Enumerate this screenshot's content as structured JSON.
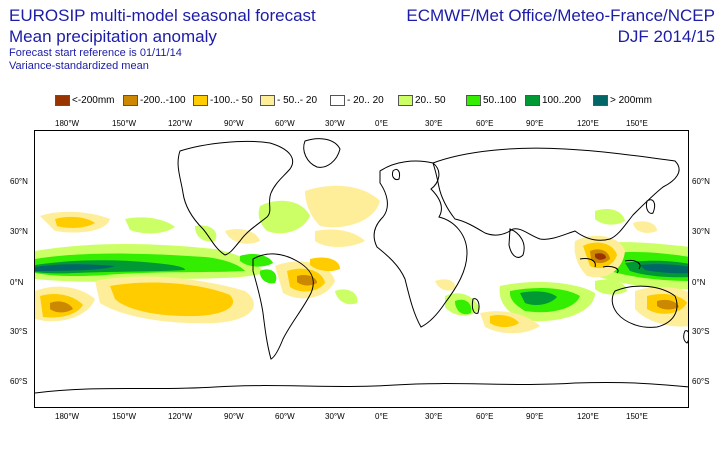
{
  "header": {
    "title_line1": "EUROSIP multi-model seasonal forecast",
    "title_line2": "Mean precipitation anomaly",
    "forecast_reference": "Forecast start reference is 01/11/14",
    "variance_note": "Variance-standardized mean",
    "centres": "ECMWF/Met Office/Meteo-France/NCEP",
    "season": "DJF 2014/15"
  },
  "legend": [
    {
      "label": "<-200mm",
      "color": "#993300"
    },
    {
      "label": "-200..-100",
      "color": "#cc8800"
    },
    {
      "label": "-100..- 50",
      "color": "#ffcc00"
    },
    {
      "label": "- 50..- 20",
      "color": "#ffee99"
    },
    {
      "label": "- 20.. 20",
      "color": "#ffffff"
    },
    {
      "label": "20.. 50",
      "color": "#ccff66"
    },
    {
      "label": "50..100",
      "color": "#33ee00"
    },
    {
      "label": "100..200",
      "color": "#009933"
    },
    {
      "label": "> 200mm",
      "color": "#006666"
    }
  ],
  "axes": {
    "lon_labels": [
      "180°W",
      "150°W",
      "120°W",
      "90°W",
      "60°W",
      "30°W",
      "0°E",
      "30°E",
      "60°E",
      "90°E",
      "120°E",
      "150°E"
    ],
    "lat_labels": [
      "60°N",
      "30°N",
      "0°N",
      "30°S",
      "60°S"
    ]
  },
  "map": {
    "projection": "equirectangular",
    "coastline_color": "#000000",
    "anomaly_features": [
      {
        "name": "central pacific wet band",
        "category": "> 200mm"
      },
      {
        "name": "subtropical pacific dry",
        "category": "-100..- 50"
      },
      {
        "name": "maritime continent dry",
        "category": "-200..-100"
      },
      {
        "name": "indian ocean wet",
        "category": "100..200"
      }
    ]
  }
}
